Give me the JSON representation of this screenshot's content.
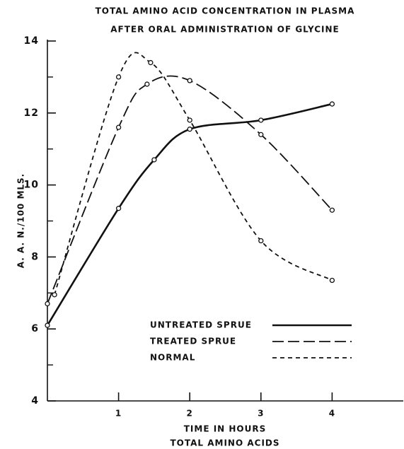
{
  "chart_data": {
    "type": "line",
    "title": "TOTAL AMINO ACID CONCENTRATION IN PLASMA",
    "subtitle": "AFTER ORAL ADMINISTRATION OF GLYCINE",
    "x_label": "TIME IN HOURS",
    "caption": "TOTAL AMINO ACIDS",
    "y_label": "A. A. N./100 MLS.",
    "xlim": [
      0,
      5
    ],
    "xticks": [
      1,
      2,
      3,
      4
    ],
    "ylim": [
      4,
      14
    ],
    "yticks": [
      4,
      6,
      8,
      10,
      12,
      14
    ],
    "yminor": [
      5,
      7,
      9,
      11,
      13
    ],
    "grid": false,
    "series": [
      {
        "name": "UNTREATED SPRUE",
        "color": "#111111",
        "style": "solid",
        "x": [
          0,
          1,
          1.5,
          2,
          3,
          4
        ],
        "values": [
          6.1,
          9.35,
          10.7,
          11.55,
          11.8,
          12.25
        ]
      },
      {
        "name": "TREATED SPRUE",
        "color": "#111111",
        "style": "long-dash",
        "x": [
          0,
          1,
          1.4,
          2,
          3,
          4
        ],
        "values": [
          6.7,
          11.6,
          12.8,
          12.9,
          11.4,
          9.3
        ]
      },
      {
        "name": "NORMAL",
        "color": "#111111",
        "style": "short-dash",
        "x": [
          0.1,
          1,
          1.45,
          2,
          3,
          4
        ],
        "values": [
          6.95,
          13.0,
          13.4,
          11.8,
          8.45,
          7.35
        ]
      }
    ]
  }
}
